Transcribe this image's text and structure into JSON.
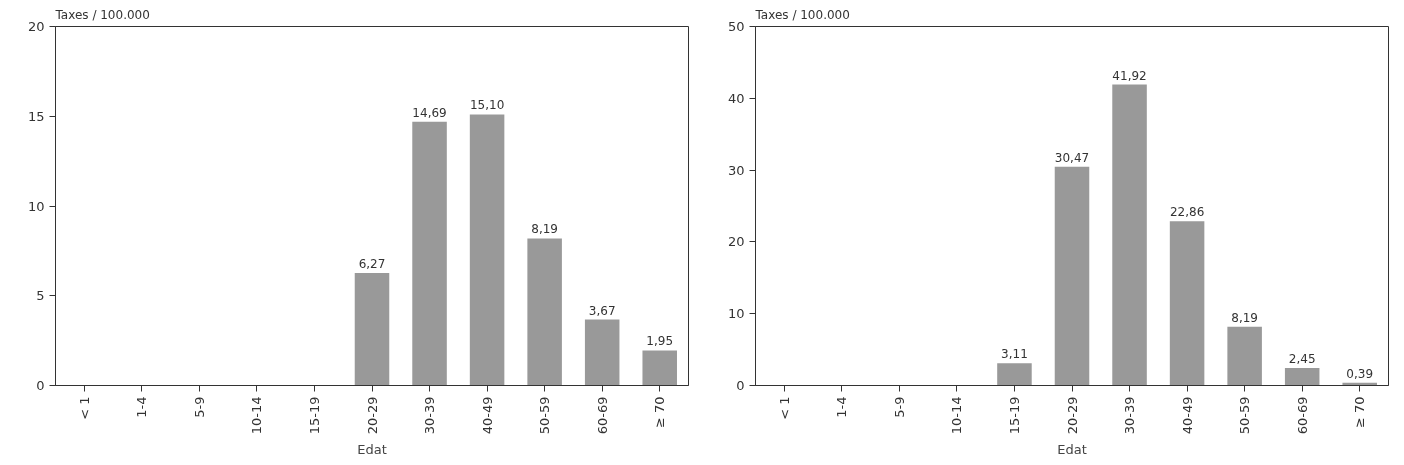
{
  "chart_data": [
    {
      "type": "bar",
      "ylabel": "Taxes / 100.000",
      "xlabel": "Edat",
      "categories": [
        "< 1",
        "1-4",
        "5-9",
        "10-14",
        "15-19",
        "20-29",
        "30-39",
        "40-49",
        "50-59",
        "60-69",
        "≥ 70"
      ],
      "values": [
        null,
        null,
        null,
        null,
        null,
        6.27,
        14.69,
        15.1,
        8.19,
        3.67,
        1.95
      ],
      "value_labels": [
        null,
        null,
        null,
        null,
        null,
        "6,27",
        "14,69",
        "15,10",
        "8,19",
        "3,67",
        "1,95"
      ],
      "color": "#999999",
      "ylim": [
        0,
        20
      ],
      "yticks": [
        0,
        5,
        10,
        15,
        20
      ],
      "grid": false
    },
    {
      "type": "bar",
      "ylabel": "Taxes / 100.000",
      "xlabel": "Edat",
      "categories": [
        "< 1",
        "1-4",
        "5-9",
        "10-14",
        "15-19",
        "20-29",
        "30-39",
        "40-49",
        "50-59",
        "60-69",
        "≥ 70"
      ],
      "values": [
        null,
        null,
        null,
        null,
        3.11,
        30.47,
        41.92,
        22.86,
        8.19,
        2.45,
        0.39
      ],
      "value_labels": [
        null,
        null,
        null,
        null,
        "3,11",
        "30,47",
        "41,92",
        "22,86",
        "8,19",
        "2,45",
        "0,39"
      ],
      "color": "#999999",
      "ylim": [
        0,
        50
      ],
      "yticks": [
        0,
        10,
        20,
        30,
        40,
        50
      ],
      "grid": false
    }
  ]
}
